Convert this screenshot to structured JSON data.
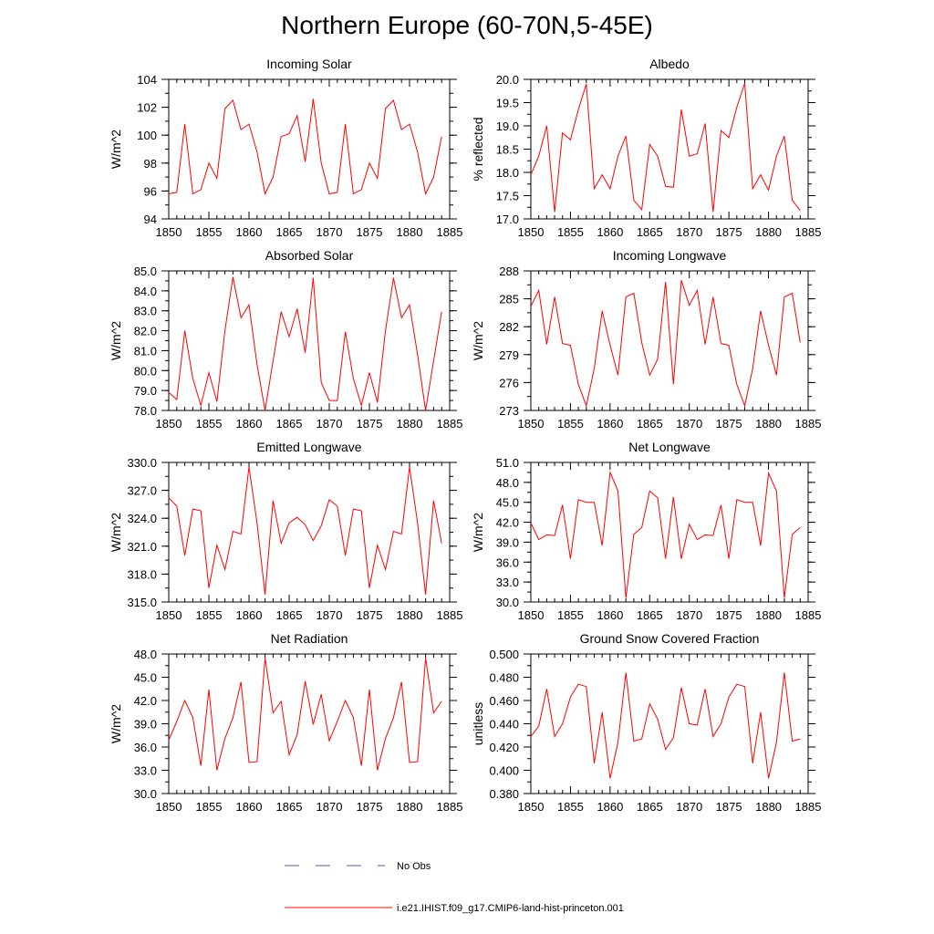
{
  "figure": {
    "title": "Northern Europe (60-70N,5-45E)"
  },
  "legend": {
    "obs_label": "No Obs",
    "obs_color": "#5555aa",
    "model_label": "i.e21.IHIST.f09_g17.CMIP6-land-hist-princeton.001",
    "model_color": "#ff0000"
  },
  "chart_data": [
    {
      "type": "line",
      "title": "Incoming Solar",
      "xlabel": "",
      "ylabel": "W/m^2",
      "xlim": [
        1850,
        1885
      ],
      "ylim": [
        94,
        104
      ],
      "xticks": [
        1850,
        1855,
        1860,
        1865,
        1870,
        1875,
        1880,
        1885
      ],
      "yticks": [
        "94",
        "96",
        "98",
        "100",
        "102",
        "104"
      ],
      "yminor": 1,
      "x_start": 1850,
      "series": [
        {
          "values": [
            95.8,
            95.9,
            100.8,
            95.8,
            96.1,
            98.0,
            96.9,
            101.9,
            102.5,
            100.4,
            100.8,
            98.8,
            95.8,
            97.0,
            99.9,
            100.1,
            101.4,
            98.1,
            102.6,
            98.0,
            95.8,
            95.9,
            100.8,
            95.8,
            96.1,
            98.0,
            96.9,
            101.9,
            102.5,
            100.4,
            100.8,
            98.8,
            95.8,
            97.0,
            99.9
          ]
        }
      ]
    },
    {
      "type": "line",
      "title": "Albedo",
      "xlabel": "",
      "ylabel": "% reflected",
      "xlim": [
        1850,
        1885
      ],
      "ylim": [
        17.0,
        20.0
      ],
      "xticks": [
        1850,
        1855,
        1860,
        1865,
        1870,
        1875,
        1880,
        1885
      ],
      "yticks": [
        "17.0",
        "17.5",
        "18.0",
        "18.5",
        "19.0",
        "19.5",
        "20.0"
      ],
      "yminor": 0.25,
      "x_start": 1850,
      "series": [
        {
          "values": [
            17.95,
            18.35,
            19.0,
            17.15,
            18.85,
            18.7,
            19.35,
            19.9,
            17.65,
            17.95,
            17.65,
            18.35,
            18.78,
            17.4,
            17.2,
            18.6,
            18.35,
            17.7,
            17.68,
            19.35,
            18.35,
            18.4,
            19.05,
            17.15,
            18.9,
            18.75,
            19.4,
            19.92,
            17.65,
            17.95,
            17.62,
            18.35,
            18.78,
            17.4,
            17.18
          ]
        }
      ]
    },
    {
      "type": "line",
      "title": "Absorbed Solar",
      "xlabel": "",
      "ylabel": "W/m^2",
      "xlim": [
        1850,
        1885
      ],
      "ylim": [
        78.0,
        85.0
      ],
      "xticks": [
        1850,
        1855,
        1860,
        1865,
        1870,
        1875,
        1880,
        1885
      ],
      "yticks": [
        "78.0",
        "79.0",
        "80.0",
        "81.0",
        "82.0",
        "83.0",
        "84.0",
        "85.0"
      ],
      "yminor": 0.5,
      "x_start": 1850,
      "series": [
        {
          "values": [
            78.9,
            78.55,
            82.0,
            79.6,
            78.25,
            79.9,
            78.45,
            82.0,
            84.7,
            82.65,
            83.3,
            80.3,
            78.0,
            80.5,
            82.95,
            81.7,
            83.1,
            80.9,
            84.65,
            79.4,
            78.5,
            78.5,
            81.95,
            79.6,
            78.25,
            79.9,
            78.4,
            82.0,
            84.65,
            82.65,
            83.3,
            80.8,
            78.0,
            80.5,
            82.95
          ]
        }
      ]
    },
    {
      "type": "line",
      "title": "Incoming Longwave",
      "xlabel": "",
      "ylabel": "W/m^2",
      "xlim": [
        1850,
        1885
      ],
      "ylim": [
        273,
        288
      ],
      "xticks": [
        1850,
        1855,
        1860,
        1865,
        1870,
        1875,
        1880,
        1885
      ],
      "yticks": [
        "273",
        "276",
        "279",
        "282",
        "285",
        "288"
      ],
      "yminor": 1.5,
      "x_start": 1850,
      "series": [
        {
          "values": [
            284.2,
            285.9,
            280.1,
            285.2,
            280.2,
            280.0,
            275.8,
            273.5,
            277.5,
            283.7,
            280.0,
            276.8,
            285.2,
            285.6,
            280.3,
            276.8,
            278.5,
            286.8,
            275.8,
            287.0,
            284.3,
            285.9,
            280.1,
            285.2,
            280.2,
            280.0,
            275.8,
            273.5,
            277.5,
            283.7,
            280.0,
            276.8,
            285.2,
            285.6,
            280.3
          ]
        }
      ]
    },
    {
      "type": "line",
      "title": "Emitted Longwave",
      "xlabel": "",
      "ylabel": "W/m^2",
      "xlim": [
        1850,
        1885
      ],
      "ylim": [
        315.0,
        330.0
      ],
      "xticks": [
        1850,
        1855,
        1860,
        1865,
        1870,
        1875,
        1880,
        1885
      ],
      "yticks": [
        "315.0",
        "318.0",
        "321.0",
        "324.0",
        "327.0",
        "330.0"
      ],
      "yminor": 1.5,
      "x_start": 1850,
      "series": [
        {
          "values": [
            326.2,
            325.3,
            320.0,
            325.0,
            324.8,
            316.5,
            321.1,
            318.5,
            322.6,
            322.3,
            329.5,
            323.5,
            315.8,
            325.9,
            321.3,
            323.5,
            324.1,
            323.3,
            321.6,
            323.2,
            326.0,
            325.3,
            320.0,
            325.0,
            324.8,
            316.5,
            321.1,
            318.5,
            322.6,
            322.3,
            329.5,
            323.5,
            315.8,
            325.9,
            321.3
          ]
        }
      ]
    },
    {
      "type": "line",
      "title": "Net Longwave",
      "xlabel": "",
      "ylabel": "W/m^2",
      "xlim": [
        1850,
        1885
      ],
      "ylim": [
        30.0,
        51.0
      ],
      "xticks": [
        1850,
        1855,
        1860,
        1865,
        1870,
        1875,
        1880,
        1885
      ],
      "yticks": [
        "30.0",
        "33.0",
        "36.0",
        "39.0",
        "42.0",
        "45.0",
        "48.0",
        "51.0"
      ],
      "yminor": 1.5,
      "x_start": 1850,
      "series": [
        {
          "values": [
            41.9,
            39.4,
            40.1,
            40.0,
            44.6,
            36.5,
            45.4,
            45.0,
            45.0,
            38.5,
            49.5,
            46.7,
            30.6,
            40.2,
            41.2,
            46.7,
            45.7,
            36.5,
            45.8,
            36.5,
            41.7,
            39.4,
            40.1,
            40.0,
            44.6,
            36.5,
            45.4,
            45.0,
            45.0,
            38.5,
            49.4,
            46.7,
            30.6,
            40.2,
            41.2
          ]
        }
      ]
    },
    {
      "type": "line",
      "title": "Net Radiation",
      "xlabel": "",
      "ylabel": "W/m^2",
      "xlim": [
        1850,
        1885
      ],
      "ylim": [
        30.0,
        48.0
      ],
      "xticks": [
        1850,
        1855,
        1860,
        1865,
        1870,
        1875,
        1880,
        1885
      ],
      "yticks": [
        "30.0",
        "33.0",
        "36.0",
        "39.0",
        "42.0",
        "45.0",
        "48.0"
      ],
      "yminor": 1.5,
      "x_start": 1850,
      "series": [
        {
          "values": [
            36.9,
            39.3,
            42.0,
            39.8,
            33.6,
            43.4,
            33.0,
            37.1,
            39.8,
            44.4,
            34.0,
            34.1,
            47.5,
            40.4,
            41.9,
            35.0,
            37.6,
            44.5,
            38.9,
            42.8,
            36.8,
            39.3,
            42.0,
            39.8,
            33.6,
            43.4,
            33.0,
            37.1,
            39.8,
            44.4,
            34.0,
            34.1,
            47.5,
            40.4,
            41.9
          ]
        }
      ]
    },
    {
      "type": "line",
      "title": "Ground Snow Covered Fraction",
      "xlabel": "",
      "ylabel": "unitless",
      "xlim": [
        1850,
        1885
      ],
      "ylim": [
        0.38,
        0.5
      ],
      "xticks": [
        1850,
        1855,
        1860,
        1865,
        1870,
        1875,
        1880,
        1885
      ],
      "yticks": [
        "0.380",
        "0.400",
        "0.420",
        "0.440",
        "0.460",
        "0.480",
        "0.500"
      ],
      "yminor": 0.01,
      "x_start": 1850,
      "series": [
        {
          "values": [
            0.429,
            0.438,
            0.47,
            0.429,
            0.44,
            0.463,
            0.474,
            0.472,
            0.406,
            0.45,
            0.393,
            0.424,
            0.484,
            0.425,
            0.427,
            0.457,
            0.444,
            0.418,
            0.428,
            0.471,
            0.44,
            0.439,
            0.47,
            0.429,
            0.44,
            0.463,
            0.474,
            0.472,
            0.406,
            0.45,
            0.393,
            0.424,
            0.484,
            0.425,
            0.427
          ]
        }
      ]
    }
  ]
}
